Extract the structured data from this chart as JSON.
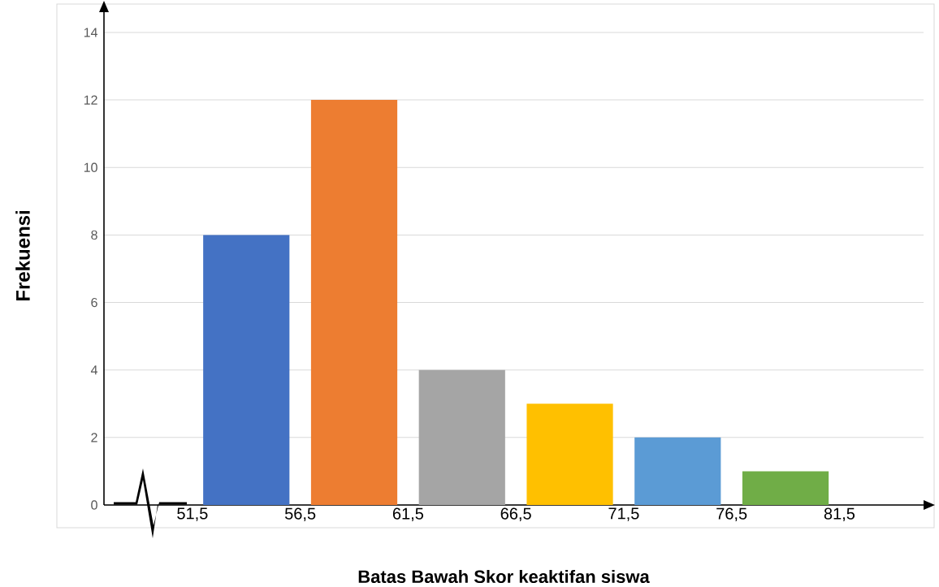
{
  "chart_data": {
    "type": "histogram",
    "xlabel": "Batas Bawah Skor keaktifan siswa",
    "ylabel": "Frekuensi",
    "bins": [
      51.5,
      56.5,
      61.5,
      66.5,
      71.5,
      76.5,
      81.5
    ],
    "values": [
      8,
      12,
      4,
      3,
      2,
      1
    ],
    "colors": [
      "#4472c4",
      "#ed7d31",
      "#a5a5a5",
      "#ffc000",
      "#5b9bd5",
      "#70ad47"
    ],
    "xlim": [
      47.4,
      85.4
    ],
    "ylim": [
      0,
      14.6
    ],
    "xticks": [
      {
        "value": 51.5,
        "label": "51,5"
      },
      {
        "value": 56.5,
        "label": "56,5"
      },
      {
        "value": 61.5,
        "label": "61,5"
      },
      {
        "value": 66.5,
        "label": "66,5"
      },
      {
        "value": 71.5,
        "label": "71,5"
      },
      {
        "value": 76.5,
        "label": "76,5"
      },
      {
        "value": 81.5,
        "label": "81,5"
      }
    ],
    "yticks": [
      0,
      2,
      4,
      6,
      8,
      10,
      12,
      14
    ],
    "grid": "y"
  }
}
